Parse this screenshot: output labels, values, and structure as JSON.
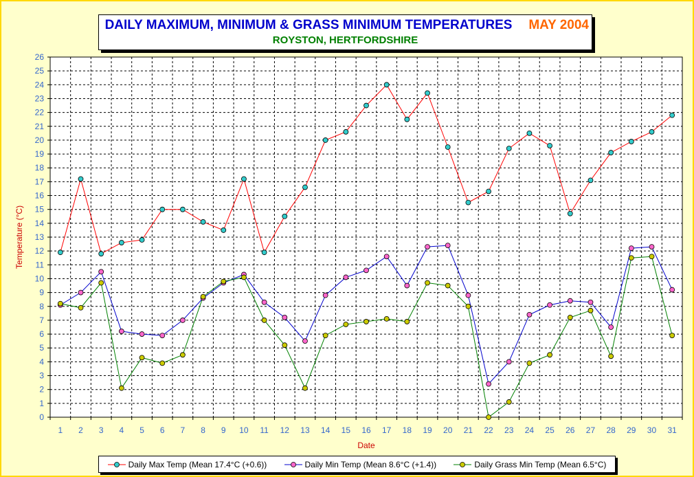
{
  "title": {
    "main": "DAILY MAXIMUM, MINIMUM & GRASS MINIMUM TEMPERATURES",
    "month": "MAY 2004",
    "subtitle": "ROYSTON, HERTFORDSHIRE"
  },
  "chart_data": {
    "type": "line",
    "xlabel": "Date",
    "ylabel": "Temperature (°C)",
    "ylim": [
      0,
      26
    ],
    "grid": true,
    "legend_position": "bottom",
    "x": [
      1,
      2,
      3,
      4,
      5,
      6,
      7,
      8,
      9,
      10,
      11,
      12,
      13,
      14,
      15,
      16,
      17,
      18,
      19,
      20,
      21,
      22,
      23,
      24,
      25,
      26,
      27,
      28,
      29,
      30,
      31
    ],
    "series": [
      {
        "name": "Daily Max Temp (Mean 17.4°C (+0.6))",
        "line_color": "#ff0000",
        "marker_color": "#33cccc",
        "values": [
          11.9,
          17.2,
          11.8,
          12.6,
          12.8,
          15.0,
          15.0,
          14.1,
          13.5,
          17.2,
          11.9,
          14.5,
          16.6,
          20.0,
          20.6,
          22.5,
          24.0,
          21.5,
          23.4,
          19.5,
          15.5,
          16.3,
          19.4,
          20.5,
          19.6,
          14.7,
          17.1,
          19.1,
          19.9,
          20.6,
          21.8
        ]
      },
      {
        "name": "Daily Min Temp (Mean 8.6°C (+1.4))",
        "line_color": "#0000cc",
        "marker_color": "#ff66cc",
        "values": [
          8.1,
          9.0,
          10.5,
          6.2,
          6.0,
          5.9,
          7.0,
          8.6,
          9.7,
          10.3,
          8.3,
          7.2,
          5.5,
          8.8,
          10.1,
          10.6,
          11.6,
          9.5,
          12.3,
          12.4,
          8.8,
          2.4,
          4.0,
          7.4,
          8.1,
          8.4,
          8.3,
          6.5,
          12.2,
          12.3,
          9.2
        ]
      },
      {
        "name": "Daily Grass Min Temp (Mean 6.5°C)",
        "line_color": "#008000",
        "marker_color": "#cccc00",
        "values": [
          8.2,
          7.9,
          9.7,
          2.1,
          4.3,
          3.9,
          4.5,
          8.7,
          9.8,
          10.1,
          7.0,
          5.2,
          2.1,
          5.9,
          6.7,
          6.9,
          7.1,
          6.9,
          9.7,
          9.5,
          8.0,
          0.0,
          1.1,
          3.9,
          4.5,
          7.2,
          7.7,
          4.4,
          11.5,
          11.6,
          5.9
        ]
      }
    ]
  }
}
